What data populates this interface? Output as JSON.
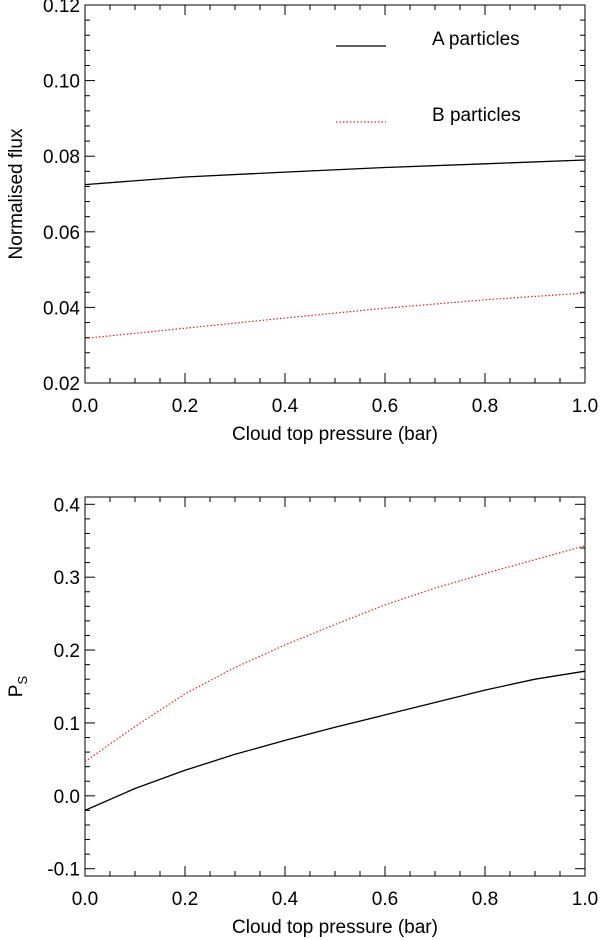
{
  "chart_data": [
    {
      "type": "line",
      "xlabel": "Cloud top pressure (bar)",
      "ylabel": "Normalised flux",
      "xlim": [
        0.0,
        1.0
      ],
      "ylim": [
        0.02,
        0.12
      ],
      "x_ticks": [
        0.0,
        0.2,
        0.4,
        0.6,
        0.8,
        1.0
      ],
      "x_tick_labels": [
        "0.0",
        "0.2",
        "0.4",
        "0.6",
        "0.8",
        "1.0"
      ],
      "y_ticks": [
        0.02,
        0.04,
        0.06,
        0.08,
        0.1,
        0.12
      ],
      "y_tick_labels": [
        "0.02",
        "0.04",
        "0.06",
        "0.08",
        "0.10",
        "0.12"
      ],
      "grid": false,
      "legend": "top-right",
      "series": [
        {
          "name": "A particles",
          "color": "#000000",
          "style": "solid",
          "x": [
            0.0,
            0.2,
            0.4,
            0.6,
            0.8,
            1.0
          ],
          "values": [
            0.0725,
            0.0745,
            0.0758,
            0.077,
            0.078,
            0.079
          ]
        },
        {
          "name": "B particles",
          "color": "#e02020",
          "style": "dotted",
          "x": [
            0.0,
            0.2,
            0.4,
            0.6,
            0.8,
            1.0
          ],
          "values": [
            0.0318,
            0.0345,
            0.0372,
            0.0398,
            0.042,
            0.0438
          ]
        }
      ]
    },
    {
      "type": "line",
      "xlabel": "Cloud top pressure (bar)",
      "ylabel": "P",
      "ylabel_sub": "S",
      "xlim": [
        0.0,
        1.0
      ],
      "ylim": [
        -0.11,
        0.41
      ],
      "x_ticks": [
        0.0,
        0.2,
        0.4,
        0.6,
        0.8,
        1.0
      ],
      "x_tick_labels": [
        "0.0",
        "0.2",
        "0.4",
        "0.6",
        "0.8",
        "1.0"
      ],
      "y_ticks": [
        -0.1,
        0.0,
        0.1,
        0.2,
        0.3,
        0.4
      ],
      "y_tick_labels": [
        "-0.1",
        "0.0",
        "0.1",
        "0.2",
        "0.3",
        "0.4"
      ],
      "grid": false,
      "series": [
        {
          "color": "#000000",
          "style": "solid",
          "x": [
            0.0,
            0.1,
            0.2,
            0.3,
            0.4,
            0.5,
            0.6,
            0.7,
            0.8,
            0.9,
            1.0
          ],
          "values": [
            -0.02,
            0.01,
            0.035,
            0.057,
            0.076,
            0.094,
            0.111,
            0.128,
            0.145,
            0.16,
            0.171
          ]
        },
        {
          "color": "#e02020",
          "style": "dotted",
          "x": [
            0.0,
            0.1,
            0.2,
            0.3,
            0.4,
            0.5,
            0.6,
            0.7,
            0.8,
            0.9,
            1.0
          ],
          "values": [
            0.047,
            0.095,
            0.14,
            0.176,
            0.207,
            0.235,
            0.262,
            0.285,
            0.305,
            0.324,
            0.343
          ]
        }
      ]
    }
  ]
}
